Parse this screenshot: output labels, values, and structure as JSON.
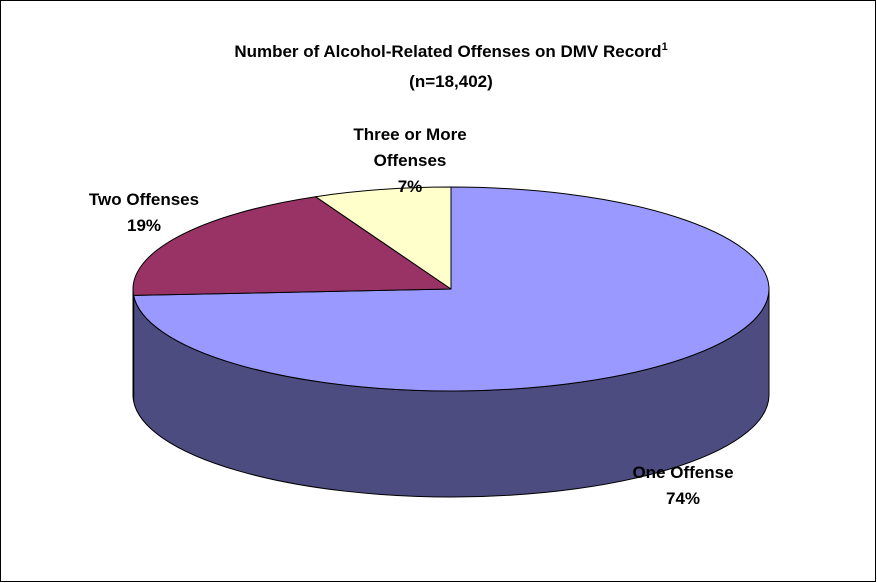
{
  "chart_data": {
    "type": "pie",
    "style": "3d",
    "title": "Number of Alcohol-Related Offenses on DMV Record",
    "title_superscript": "1",
    "subtitle": "(n=18,402)",
    "slices": [
      {
        "name": "One Offense",
        "label_lines": [
          "One Offense"
        ],
        "value": 74,
        "value_label": "74%",
        "color": "#9999ff",
        "side_color": "#4c4c80"
      },
      {
        "name": "Two Offenses",
        "label_lines": [
          "Two Offenses"
        ],
        "value": 19,
        "value_label": "19%",
        "color": "#993366",
        "side_color": "#4d1a33"
      },
      {
        "name": "Three or More Offenses",
        "label_lines": [
          "Three or More",
          "Offenses"
        ],
        "value": 7,
        "value_label": "7%",
        "color": "#ffffcc",
        "side_color": "#808066"
      }
    ]
  }
}
